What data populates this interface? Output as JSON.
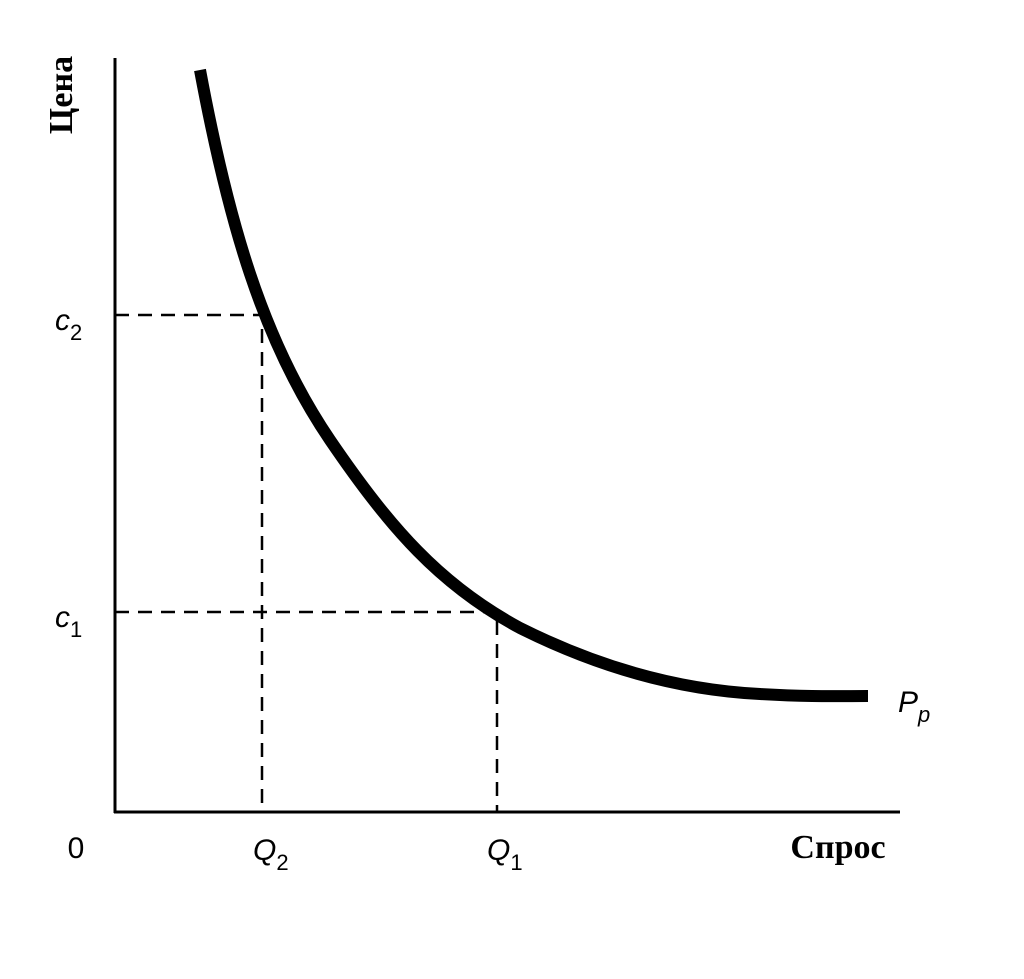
{
  "axes": {
    "y_label": "Цена",
    "x_label": "Спрос",
    "origin": "0"
  },
  "price_marks": [
    {
      "base": "c",
      "sub": "2"
    },
    {
      "base": "c",
      "sub": "1"
    }
  ],
  "quantity_marks": [
    {
      "base": "Q",
      "sub": "2"
    },
    {
      "base": "Q",
      "sub": "1"
    }
  ],
  "curve_label": {
    "base": "P",
    "sub": "p"
  }
}
